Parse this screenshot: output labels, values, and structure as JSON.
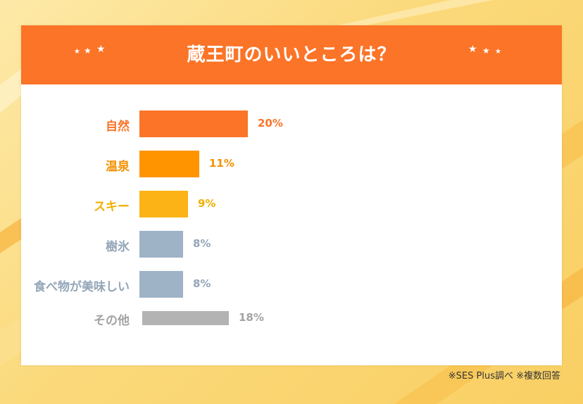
{
  "title": "蔵王町のいいところは？",
  "stars": "★ ★ ★",
  "footnote": "※SES Plus調べ ※複数回答",
  "chart_data": {
    "type": "bar",
    "orientation": "horizontal",
    "title": "蔵王町のいいところは？",
    "categories": [
      "自然",
      "温泉",
      "スキー",
      "樹氷",
      "食べ物が美味しい",
      "その他"
    ],
    "values": [
      20,
      11,
      9,
      8,
      8,
      18
    ],
    "value_labels": [
      "20%",
      "11%",
      "9%",
      "8%",
      "8%",
      "18%"
    ],
    "unit": "%",
    "bar_colors": [
      "#fb7428",
      "#ff9300",
      "#fbb316",
      "#9fb3c6",
      "#9fb3c6",
      "#b3b3b3"
    ],
    "label_colors": [
      "#fb7428",
      "#f39100",
      "#f0b000",
      "#94a6b8",
      "#94a6b8",
      "#a3a3a3"
    ],
    "grid": false,
    "legend": "none"
  }
}
